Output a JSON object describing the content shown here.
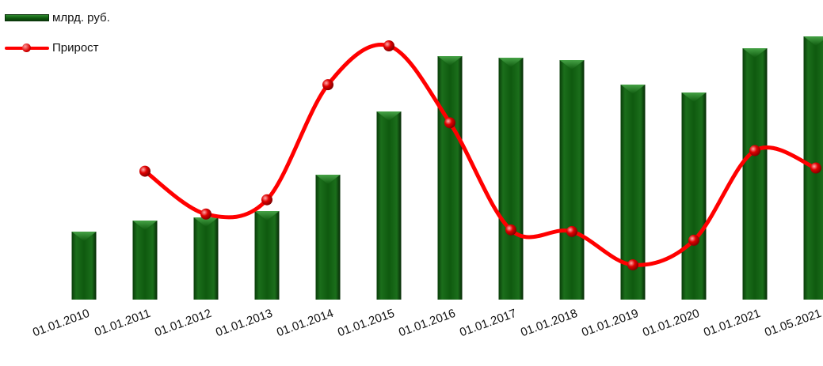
{
  "legend": {
    "bar_label": "млрд. руб.",
    "line_label": "Прирост"
  },
  "colors": {
    "bar": "#0f5a0f",
    "bar_dark": "#083008",
    "bar_light": "#2f8a2f",
    "line": "#ff0000",
    "marker": "#d60000"
  },
  "chart_data": {
    "type": "bar",
    "title": "",
    "xlabel": "",
    "ylabel": "",
    "grid": false,
    "legend_position": "top-left",
    "categories": [
      "01.01.2010",
      "01.01.2011",
      "01.01.2012",
      "01.01.2013",
      "01.01.2014",
      "01.01.2015",
      "01.01.2016",
      "01.01.2017",
      "01.01.2018",
      "01.01.2019",
      "01.01.2020",
      "01.01.2021",
      "01.05.2021"
    ],
    "series": [
      {
        "name": "млрд. руб.",
        "type": "bar",
        "values": [
          86,
          100,
          104,
          112,
          158,
          238,
          308,
          306,
          303,
          272,
          262,
          318,
          333
        ]
      },
      {
        "name": "Прирост",
        "type": "line",
        "values": [
          null,
          162,
          108,
          126,
          271,
          320,
          223,
          88,
          86,
          44,
          75,
          188,
          166
        ]
      }
    ]
  }
}
